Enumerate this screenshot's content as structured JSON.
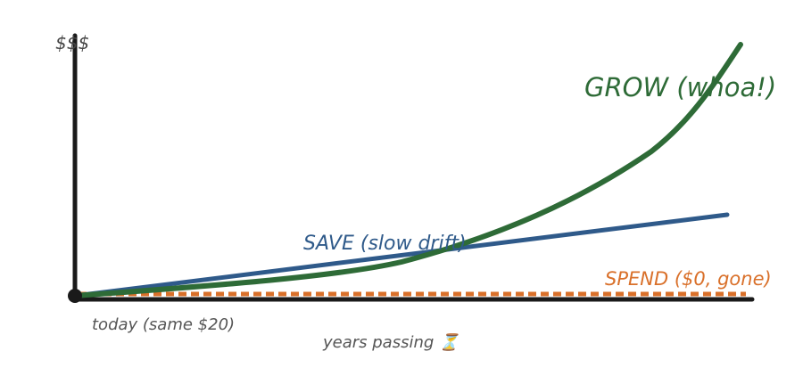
{
  "axis": {
    "y_label": "$$$",
    "x_label": "years passing ⏳",
    "origin_label": "today (same $20)"
  },
  "lines": [
    {
      "label": "GROW (whoa!)"
    },
    {
      "label": "SAVE (slow drift)"
    },
    {
      "label": "SPEND ($0, gone)"
    }
  ]
}
